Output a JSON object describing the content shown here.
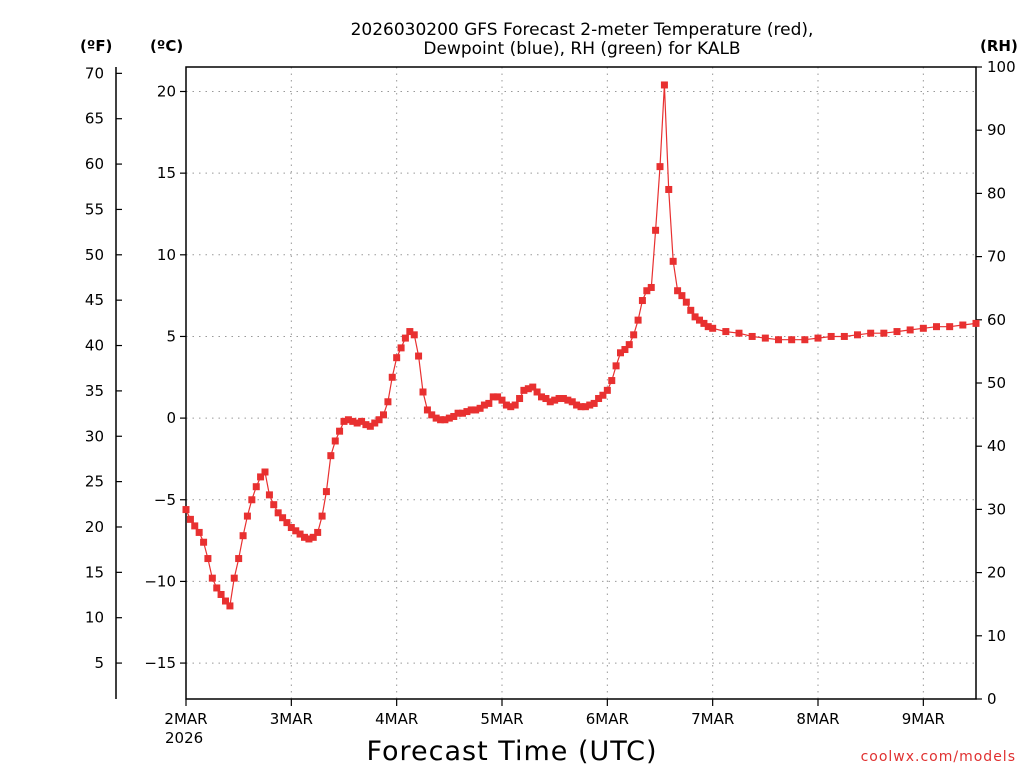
{
  "chart_data": {
    "type": "line",
    "title": "2026030200 GFS Forecast 2-meter Temperature (red),",
    "subtitle": "Dewpoint (blue), RH (green) for KALB",
    "xlabel": "Forecast Time (UTC)",
    "credit": "coolwx.com/models",
    "units": {
      "fahrenheit": "(ºF)",
      "celsius": "(ºC)",
      "rh": "(RH)"
    },
    "x_ticks": [
      "2MAR",
      "3MAR",
      "4MAR",
      "5MAR",
      "6MAR",
      "7MAR",
      "8MAR",
      "9MAR"
    ],
    "x_year": "2026",
    "xlim": [
      0,
      7.5
    ],
    "celsius_ticks": [
      "−15",
      "−10",
      "−5",
      "0",
      "5",
      "10",
      "15",
      "20"
    ],
    "celsius_tick_values": [
      -15,
      -10,
      -5,
      0,
      5,
      10,
      15,
      20
    ],
    "celsius_lim": [
      -17.2,
      21.5
    ],
    "fahrenheit_ticks": [
      "5",
      "10",
      "15",
      "20",
      "25",
      "30",
      "35",
      "40",
      "45",
      "50",
      "55",
      "60",
      "65",
      "70"
    ],
    "fahrenheit_tick_values": [
      5,
      10,
      15,
      20,
      25,
      30,
      35,
      40,
      45,
      50,
      55,
      60,
      65,
      70
    ],
    "rh_ticks": [
      "0",
      "10",
      "20",
      "30",
      "40",
      "50",
      "60",
      "70",
      "80",
      "90",
      "100"
    ],
    "rh_tick_values": [
      0,
      10,
      20,
      30,
      40,
      50,
      60,
      70,
      80,
      90,
      100
    ],
    "rh_lim": [
      0,
      100
    ],
    "grid": true,
    "series": [
      {
        "name": "Temperature",
        "color": "#e83030",
        "marker": "filled-square",
        "axis": "celsius",
        "x": [
          0,
          0.042,
          0.083,
          0.125,
          0.167,
          0.208,
          0.25,
          0.292,
          0.333,
          0.375,
          0.417,
          0.458,
          0.5,
          0.542,
          0.583,
          0.625,
          0.667,
          0.708,
          0.75,
          0.792,
          0.833,
          0.875,
          0.917,
          0.958,
          1.0,
          1.042,
          1.083,
          1.125,
          1.167,
          1.208,
          1.25,
          1.292,
          1.333,
          1.375,
          1.417,
          1.458,
          1.5,
          1.542,
          1.583,
          1.625,
          1.667,
          1.708,
          1.75,
          1.792,
          1.833,
          1.875,
          1.917,
          1.958,
          2.0,
          2.042,
          2.083,
          2.125,
          2.167,
          2.208,
          2.25,
          2.292,
          2.333,
          2.375,
          2.417,
          2.458,
          2.5,
          2.542,
          2.583,
          2.625,
          2.667,
          2.708,
          2.75,
          2.792,
          2.833,
          2.875,
          2.917,
          2.958,
          3.0,
          3.042,
          3.083,
          3.125,
          3.167,
          3.208,
          3.25,
          3.292,
          3.333,
          3.375,
          3.417,
          3.458,
          3.5,
          3.542,
          3.583,
          3.625,
          3.667,
          3.708,
          3.75,
          3.792,
          3.833,
          3.875,
          3.917,
          3.958,
          4.0,
          4.042,
          4.083,
          4.125,
          4.167,
          4.208,
          4.25,
          4.292,
          4.333,
          4.375,
          4.417,
          4.458,
          4.5,
          4.542,
          4.583,
          4.625,
          4.667,
          4.708,
          4.75,
          4.792,
          4.833,
          4.875,
          4.917,
          4.958,
          5.0,
          5.125,
          5.25,
          5.375,
          5.5,
          5.625,
          5.75,
          5.875,
          6.0,
          6.125,
          6.25,
          6.375,
          6.5,
          6.625,
          6.75,
          6.875,
          7.0,
          7.125,
          7.25,
          7.375,
          7.5
        ],
        "values": [
          -5.6,
          -6.2,
          -6.6,
          -7.0,
          -7.6,
          -8.6,
          -9.8,
          -10.4,
          -10.8,
          -11.2,
          -11.5,
          -9.8,
          -8.6,
          -7.2,
          -6.0,
          -5.0,
          -4.2,
          -3.6,
          -3.3,
          -4.7,
          -5.3,
          -5.8,
          -6.1,
          -6.4,
          -6.7,
          -6.9,
          -7.1,
          -7.3,
          -7.4,
          -7.3,
          -7.0,
          -6.0,
          -4.5,
          -2.3,
          -1.4,
          -0.8,
          -0.2,
          -0.1,
          -0.2,
          -0.3,
          -0.2,
          -0.4,
          -0.5,
          -0.3,
          -0.1,
          0.2,
          1.0,
          2.5,
          3.7,
          4.3,
          4.9,
          5.3,
          5.1,
          3.8,
          1.6,
          0.5,
          0.2,
          0.0,
          -0.1,
          -0.1,
          0.0,
          0.1,
          0.3,
          0.3,
          0.4,
          0.5,
          0.5,
          0.6,
          0.8,
          0.9,
          1.3,
          1.3,
          1.1,
          0.8,
          0.7,
          0.8,
          1.2,
          1.7,
          1.8,
          1.9,
          1.6,
          1.3,
          1.2,
          1.0,
          1.1,
          1.2,
          1.2,
          1.1,
          1.0,
          0.8,
          0.7,
          0.7,
          0.8,
          0.9,
          1.2,
          1.4,
          1.7,
          2.3,
          3.2,
          4.0,
          4.2,
          4.5,
          5.1,
          6.0,
          7.2,
          7.8,
          8.0,
          11.5,
          15.4,
          20.4,
          14.0,
          9.6,
          7.8,
          7.5,
          7.1,
          6.6,
          6.2,
          6.0,
          5.8,
          5.6,
          5.5,
          5.3,
          5.2,
          5.0,
          4.9,
          4.8,
          4.8,
          4.8,
          4.9,
          5.0,
          5.0,
          5.1,
          5.2,
          5.2,
          5.3,
          5.4,
          5.5,
          5.6,
          5.6,
          5.7,
          5.8
        ],
        "values_note": "series truncated at display edge"
      }
    ]
  }
}
